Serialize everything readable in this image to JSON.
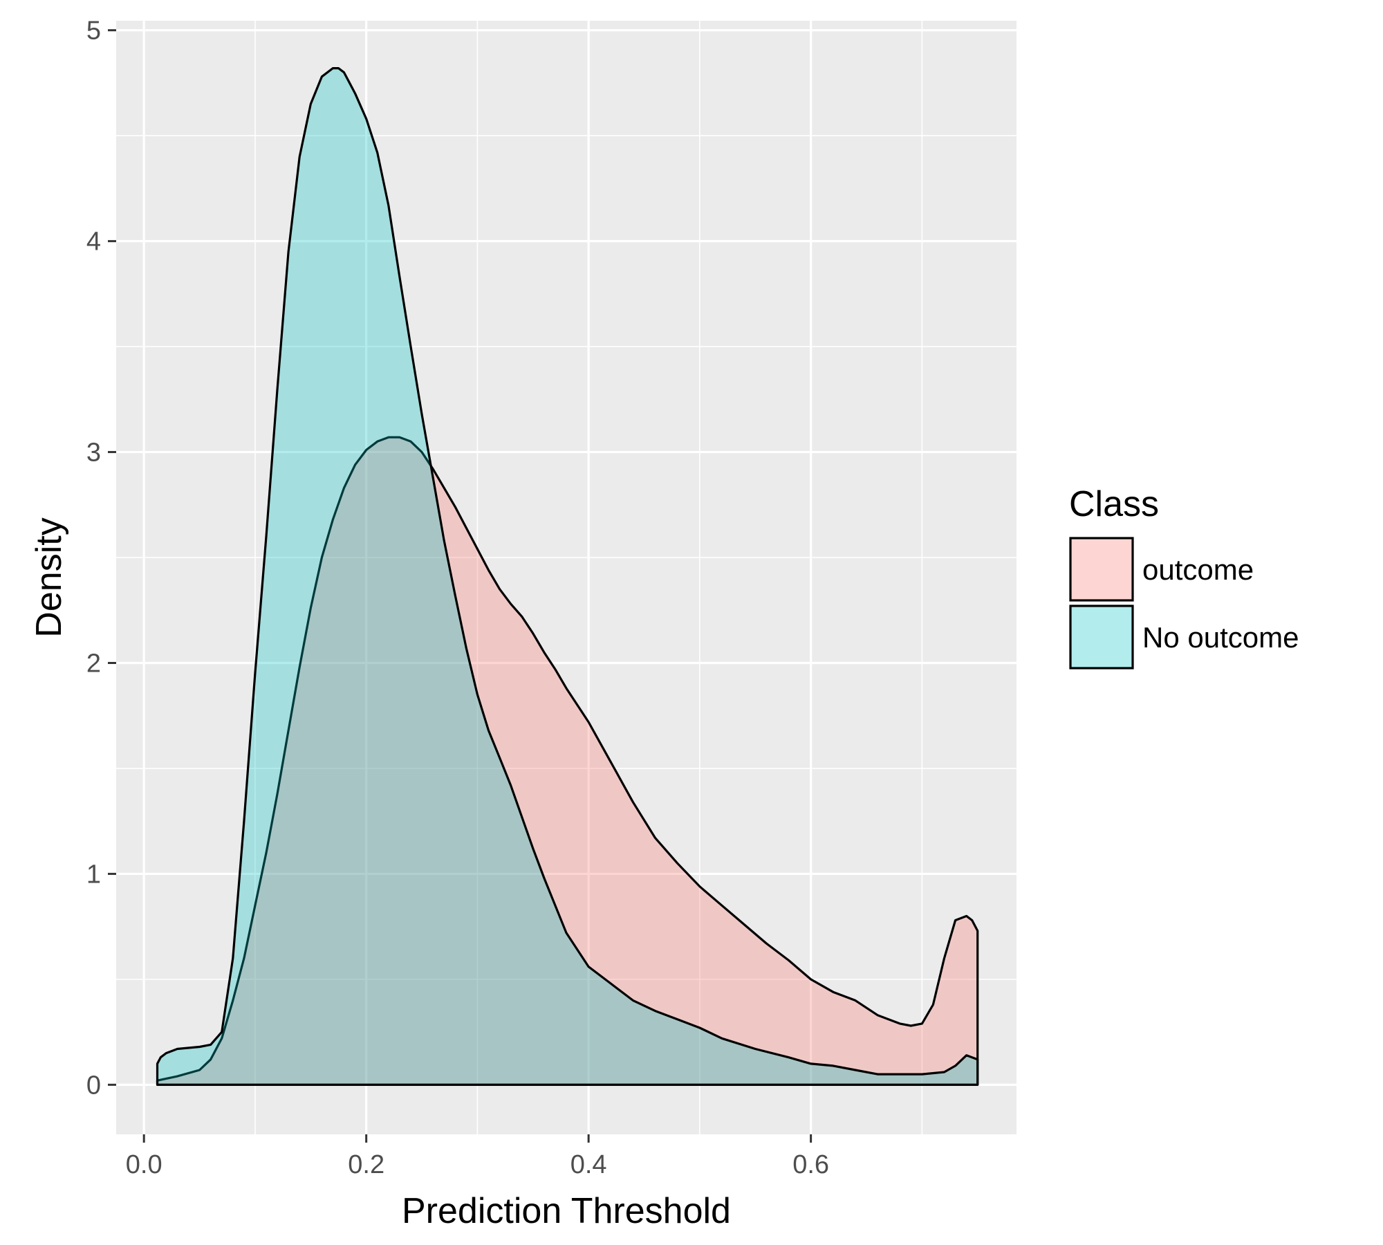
{
  "chart_data": {
    "type": "area",
    "xlabel": "Prediction Threshold",
    "ylabel": "Density",
    "xlim": [
      -0.025,
      0.785
    ],
    "ylim": [
      -0.235,
      5.045
    ],
    "x_ticks": [
      0.0,
      0.2,
      0.4,
      0.6
    ],
    "x_tick_labels": [
      "0.0",
      "0.2",
      "0.4",
      "0.6"
    ],
    "y_ticks": [
      0,
      1,
      2,
      3,
      4,
      5
    ],
    "y_tick_labels": [
      "0",
      "1",
      "2",
      "3",
      "4",
      "5"
    ],
    "grid": true,
    "legend": {
      "title": "Class",
      "placement": "right"
    },
    "series": [
      {
        "name": "outcome",
        "color": "#F8766D",
        "x": [
          0.012,
          0.03,
          0.05,
          0.06,
          0.07,
          0.08,
          0.09,
          0.1,
          0.11,
          0.12,
          0.13,
          0.14,
          0.15,
          0.16,
          0.17,
          0.18,
          0.19,
          0.2,
          0.21,
          0.22,
          0.23,
          0.24,
          0.25,
          0.26,
          0.27,
          0.28,
          0.29,
          0.3,
          0.31,
          0.32,
          0.33,
          0.34,
          0.35,
          0.36,
          0.37,
          0.38,
          0.4,
          0.42,
          0.44,
          0.46,
          0.48,
          0.5,
          0.52,
          0.54,
          0.56,
          0.58,
          0.6,
          0.62,
          0.64,
          0.66,
          0.68,
          0.69,
          0.7,
          0.71,
          0.72,
          0.73,
          0.74,
          0.745,
          0.75
        ],
        "y": [
          0.02,
          0.04,
          0.07,
          0.12,
          0.22,
          0.4,
          0.6,
          0.85,
          1.1,
          1.38,
          1.68,
          1.98,
          2.26,
          2.5,
          2.68,
          2.83,
          2.94,
          3.01,
          3.05,
          3.07,
          3.07,
          3.05,
          3.0,
          2.92,
          2.83,
          2.74,
          2.64,
          2.54,
          2.44,
          2.35,
          2.28,
          2.22,
          2.14,
          2.05,
          1.97,
          1.88,
          1.72,
          1.53,
          1.34,
          1.17,
          1.05,
          0.94,
          0.85,
          0.76,
          0.67,
          0.59,
          0.5,
          0.44,
          0.4,
          0.33,
          0.29,
          0.28,
          0.29,
          0.38,
          0.6,
          0.78,
          0.8,
          0.78,
          0.73
        ]
      },
      {
        "name": "No outcome",
        "color": "#00BFC4",
        "x": [
          0.012,
          0.015,
          0.02,
          0.03,
          0.05,
          0.06,
          0.07,
          0.08,
          0.09,
          0.1,
          0.11,
          0.12,
          0.13,
          0.14,
          0.15,
          0.16,
          0.17,
          0.175,
          0.18,
          0.19,
          0.2,
          0.21,
          0.22,
          0.23,
          0.24,
          0.25,
          0.26,
          0.27,
          0.28,
          0.29,
          0.3,
          0.31,
          0.32,
          0.33,
          0.34,
          0.35,
          0.36,
          0.38,
          0.4,
          0.42,
          0.44,
          0.46,
          0.48,
          0.5,
          0.52,
          0.55,
          0.58,
          0.6,
          0.62,
          0.64,
          0.66,
          0.68,
          0.7,
          0.72,
          0.73,
          0.74,
          0.745,
          0.75
        ],
        "y": [
          0.1,
          0.13,
          0.15,
          0.17,
          0.18,
          0.19,
          0.25,
          0.6,
          1.25,
          1.95,
          2.6,
          3.3,
          3.95,
          4.4,
          4.65,
          4.78,
          4.82,
          4.82,
          4.8,
          4.7,
          4.58,
          4.42,
          4.17,
          3.83,
          3.5,
          3.18,
          2.88,
          2.58,
          2.32,
          2.07,
          1.85,
          1.68,
          1.55,
          1.42,
          1.27,
          1.12,
          0.98,
          0.72,
          0.56,
          0.48,
          0.4,
          0.35,
          0.31,
          0.27,
          0.22,
          0.17,
          0.13,
          0.1,
          0.09,
          0.07,
          0.05,
          0.05,
          0.05,
          0.06,
          0.09,
          0.14,
          0.13,
          0.12
        ]
      }
    ]
  }
}
